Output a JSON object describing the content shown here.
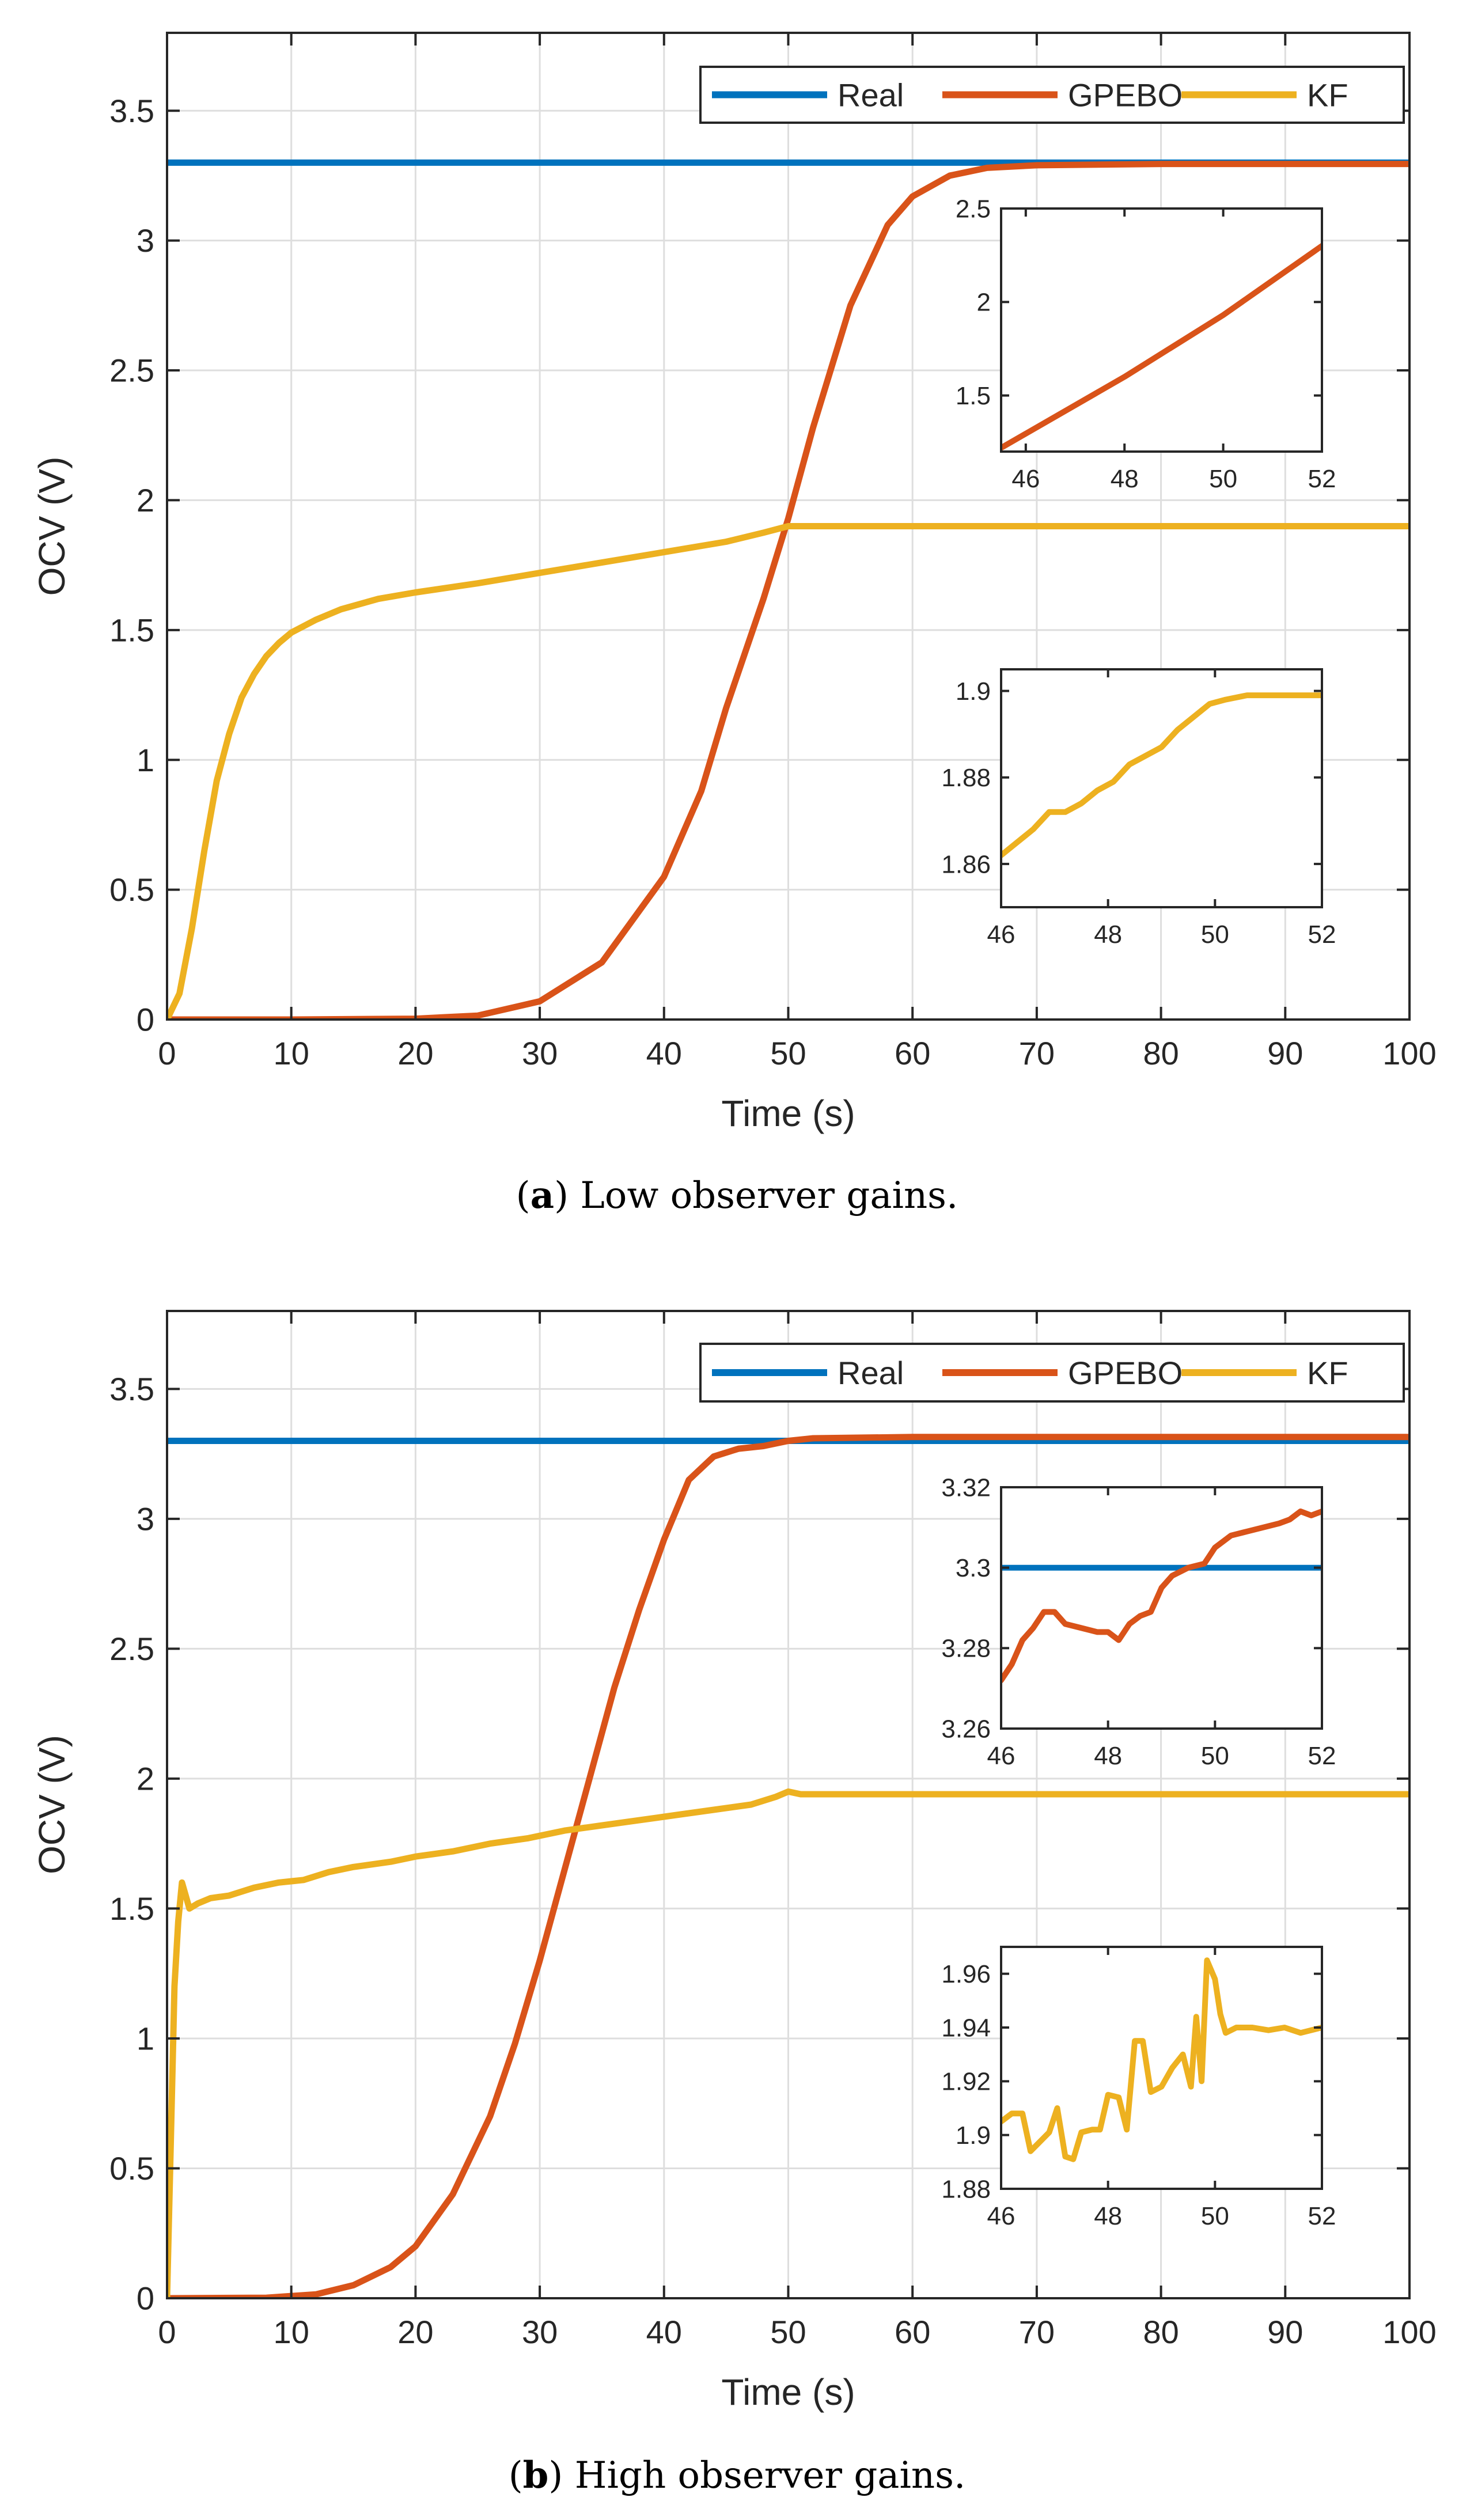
{
  "colors": {
    "real": "#0072BD",
    "gpebo": "#D95319",
    "kf": "#EDB120",
    "grid": "#DEDEDE",
    "axis": "#262626"
  },
  "legend": {
    "entries": [
      "Real",
      "GPEBO",
      "KF"
    ]
  },
  "captions": [
    {
      "letter": "a",
      "text": " Low observer gains.",
      "open": "(",
      "close": ")"
    },
    {
      "letter": "b",
      "text": " High observer gains.",
      "open": "(",
      "close": ")"
    }
  ],
  "chart_data": [
    {
      "type": "line",
      "panel": "a",
      "title": "",
      "xlabel": "Time (s)",
      "ylabel": "OCV (V)",
      "xlim": [
        0,
        100
      ],
      "ylim": [
        0,
        3.8
      ],
      "xticks": [
        0,
        10,
        20,
        30,
        40,
        50,
        60,
        70,
        80,
        90,
        100
      ],
      "yticks": [
        0,
        0.5,
        1,
        1.5,
        2,
        2.5,
        3,
        3.5
      ],
      "ytick_labels": [
        "0",
        "0.5",
        "1",
        "1.5",
        "2",
        "2.5",
        "3",
        "3.5"
      ],
      "grid": true,
      "legend_position": "top-right",
      "series": [
        {
          "name": "Real",
          "color_key": "real",
          "points": [
            [
              0,
              3.3
            ],
            [
              100,
              3.3
            ]
          ]
        },
        {
          "name": "GPEBO",
          "color_key": "gpebo",
          "points": [
            [
              0,
              0
            ],
            [
              10,
              0
            ],
            [
              20,
              0.003
            ],
            [
              25,
              0.015
            ],
            [
              30,
              0.07
            ],
            [
              35,
              0.22
            ],
            [
              40,
              0.55
            ],
            [
              43,
              0.88
            ],
            [
              45,
              1.2
            ],
            [
              48,
              1.62
            ],
            [
              50,
              1.93
            ],
            [
              52,
              2.28
            ],
            [
              55,
              2.75
            ],
            [
              58,
              3.06
            ],
            [
              60,
              3.17
            ],
            [
              63,
              3.25
            ],
            [
              66,
              3.28
            ],
            [
              70,
              3.29
            ],
            [
              80,
              3.295
            ],
            [
              100,
              3.295
            ]
          ]
        },
        {
          "name": "KF",
          "color_key": "kf",
          "points": [
            [
              0,
              0
            ],
            [
              1,
              0.1
            ],
            [
              2,
              0.35
            ],
            [
              3,
              0.65
            ],
            [
              4,
              0.92
            ],
            [
              5,
              1.1
            ],
            [
              6,
              1.24
            ],
            [
              7,
              1.33
            ],
            [
              8,
              1.4
            ],
            [
              9,
              1.45
            ],
            [
              10,
              1.49
            ],
            [
              12,
              1.54
            ],
            [
              14,
              1.58
            ],
            [
              17,
              1.62
            ],
            [
              20,
              1.645
            ],
            [
              25,
              1.68
            ],
            [
              30,
              1.72
            ],
            [
              35,
              1.76
            ],
            [
              40,
              1.8
            ],
            [
              45,
              1.84
            ],
            [
              48,
              1.875
            ],
            [
              50,
              1.9
            ],
            [
              52,
              1.9
            ],
            [
              100,
              1.9
            ]
          ]
        }
      ],
      "insets": [
        {
          "xlim": [
            45.5,
            52
          ],
          "ylim": [
            1.2,
            2.5
          ],
          "xticks": [
            46,
            48,
            50,
            52
          ],
          "yticks": [
            1.5,
            2,
            2.5
          ],
          "ytick_labels": [
            "1.5",
            "2",
            "2.5"
          ],
          "series": [
            {
              "name": "GPEBO",
              "color_key": "gpebo",
              "points": [
                [
                  45.5,
                  1.22
                ],
                [
                  48,
                  1.6
                ],
                [
                  50,
                  1.93
                ],
                [
                  52,
                  2.3
                ]
              ]
            }
          ]
        },
        {
          "xlim": [
            46,
            52
          ],
          "ylim": [
            1.85,
            1.905
          ],
          "xticks": [
            46,
            48,
            50,
            52
          ],
          "yticks": [
            1.86,
            1.88,
            1.9
          ],
          "ytick_labels": [
            "1.86",
            "1.88",
            "1.9"
          ],
          "series": [
            {
              "name": "KF",
              "color_key": "kf",
              "points": [
                [
                  46,
                  1.862
                ],
                [
                  46.3,
                  1.865
                ],
                [
                  46.6,
                  1.868
                ],
                [
                  46.9,
                  1.872
                ],
                [
                  47.2,
                  1.872
                ],
                [
                  47.5,
                  1.874
                ],
                [
                  47.8,
                  1.877
                ],
                [
                  48.1,
                  1.879
                ],
                [
                  48.4,
                  1.883
                ],
                [
                  48.7,
                  1.885
                ],
                [
                  49,
                  1.887
                ],
                [
                  49.3,
                  1.891
                ],
                [
                  49.6,
                  1.894
                ],
                [
                  49.9,
                  1.897
                ],
                [
                  50.2,
                  1.898
                ],
                [
                  50.6,
                  1.899
                ],
                [
                  51,
                  1.899
                ],
                [
                  52,
                  1.899
                ]
              ]
            }
          ]
        }
      ]
    },
    {
      "type": "line",
      "panel": "b",
      "title": "",
      "xlabel": "Time (s)",
      "ylabel": "OCV (V)",
      "xlim": [
        0,
        100
      ],
      "ylim": [
        0,
        3.8
      ],
      "xticks": [
        0,
        10,
        20,
        30,
        40,
        50,
        60,
        70,
        80,
        90,
        100
      ],
      "yticks": [
        0,
        0.5,
        1,
        1.5,
        2,
        2.5,
        3,
        3.5
      ],
      "ytick_labels": [
        "0",
        "0.5",
        "1",
        "1.5",
        "2",
        "2.5",
        "3",
        "3.5"
      ],
      "grid": true,
      "legend_position": "top-right",
      "series": [
        {
          "name": "Real",
          "color_key": "real",
          "points": [
            [
              0,
              3.3
            ],
            [
              100,
              3.3
            ]
          ]
        },
        {
          "name": "GPEBO",
          "color_key": "gpebo",
          "points": [
            [
              0,
              0
            ],
            [
              8,
              0.002
            ],
            [
              12,
              0.015
            ],
            [
              15,
              0.05
            ],
            [
              18,
              0.12
            ],
            [
              20,
              0.2
            ],
            [
              23,
              0.4
            ],
            [
              26,
              0.7
            ],
            [
              28,
              0.98
            ],
            [
              30,
              1.3
            ],
            [
              32,
              1.65
            ],
            [
              34,
              2.0
            ],
            [
              36,
              2.35
            ],
            [
              38,
              2.65
            ],
            [
              40,
              2.92
            ],
            [
              42,
              3.15
            ],
            [
              44,
              3.24
            ],
            [
              46,
              3.27
            ],
            [
              48,
              3.28
            ],
            [
              50,
              3.3
            ],
            [
              52,
              3.31
            ],
            [
              60,
              3.315
            ],
            [
              100,
              3.315
            ]
          ]
        },
        {
          "name": "KF",
          "color_key": "kf",
          "points": [
            [
              0,
              0
            ],
            [
              0.3,
              0.6
            ],
            [
              0.6,
              1.2
            ],
            [
              0.9,
              1.45
            ],
            [
              1.2,
              1.6
            ],
            [
              1.5,
              1.55
            ],
            [
              1.8,
              1.5
            ],
            [
              2.5,
              1.52
            ],
            [
              3.5,
              1.54
            ],
            [
              5,
              1.55
            ],
            [
              7,
              1.58
            ],
            [
              9,
              1.6
            ],
            [
              11,
              1.61
            ],
            [
              13,
              1.64
            ],
            [
              15,
              1.66
            ],
            [
              18,
              1.68
            ],
            [
              20,
              1.7
            ],
            [
              23,
              1.72
            ],
            [
              26,
              1.75
            ],
            [
              29,
              1.77
            ],
            [
              32,
              1.8
            ],
            [
              35,
              1.82
            ],
            [
              38,
              1.84
            ],
            [
              41,
              1.86
            ],
            [
              44,
              1.88
            ],
            [
              47,
              1.9
            ],
            [
              49,
              1.93
            ],
            [
              50,
              1.95
            ],
            [
              51,
              1.94
            ],
            [
              100,
              1.94
            ]
          ]
        }
      ],
      "insets": [
        {
          "xlim": [
            46,
            52
          ],
          "ylim": [
            3.26,
            3.32
          ],
          "xticks": [
            46,
            48,
            50,
            52
          ],
          "yticks": [
            3.26,
            3.28,
            3.3,
            3.32
          ],
          "ytick_labels": [
            "3.26",
            "3.28",
            "3.3",
            "3.32"
          ],
          "series": [
            {
              "name": "Real",
              "color_key": "real",
              "points": [
                [
                  46,
                  3.3
                ],
                [
                  52,
                  3.3
                ]
              ]
            },
            {
              "name": "GPEBO",
              "color_key": "gpebo",
              "points": [
                [
                  46,
                  3.272
                ],
                [
                  46.2,
                  3.276
                ],
                [
                  46.4,
                  3.282
                ],
                [
                  46.6,
                  3.285
                ],
                [
                  46.8,
                  3.289
                ],
                [
                  47,
                  3.289
                ],
                [
                  47.2,
                  3.286
                ],
                [
                  47.5,
                  3.285
                ],
                [
                  47.8,
                  3.284
                ],
                [
                  48,
                  3.284
                ],
                [
                  48.2,
                  3.282
                ],
                [
                  48.4,
                  3.286
                ],
                [
                  48.6,
                  3.288
                ],
                [
                  48.8,
                  3.289
                ],
                [
                  49,
                  3.295
                ],
                [
                  49.2,
                  3.298
                ],
                [
                  49.5,
                  3.3
                ],
                [
                  49.8,
                  3.301
                ],
                [
                  50,
                  3.305
                ],
                [
                  50.3,
                  3.308
                ],
                [
                  50.6,
                  3.309
                ],
                [
                  50.9,
                  3.31
                ],
                [
                  51.2,
                  3.311
                ],
                [
                  51.4,
                  3.312
                ],
                [
                  51.6,
                  3.314
                ],
                [
                  51.8,
                  3.313
                ],
                [
                  52,
                  3.314
                ]
              ]
            }
          ]
        },
        {
          "xlim": [
            46,
            52
          ],
          "ylim": [
            1.88,
            1.97
          ],
          "xticks": [
            46,
            48,
            50,
            52
          ],
          "yticks": [
            1.88,
            1.9,
            1.92,
            1.94,
            1.96
          ],
          "ytick_labels": [
            "1.88",
            "1.9",
            "1.92",
            "1.94",
            "1.96"
          ],
          "series": [
            {
              "name": "KF",
              "color_key": "kf",
              "points": [
                [
                  46,
                  1.905
                ],
                [
                  46.2,
                  1.908
                ],
                [
                  46.4,
                  1.908
                ],
                [
                  46.55,
                  1.894
                ],
                [
                  46.7,
                  1.897
                ],
                [
                  46.9,
                  1.901
                ],
                [
                  47.05,
                  1.91
                ],
                [
                  47.2,
                  1.892
                ],
                [
                  47.35,
                  1.891
                ],
                [
                  47.5,
                  1.901
                ],
                [
                  47.7,
                  1.902
                ],
                [
                  47.85,
                  1.902
                ],
                [
                  48,
                  1.915
                ],
                [
                  48.2,
                  1.914
                ],
                [
                  48.35,
                  1.902
                ],
                [
                  48.5,
                  1.935
                ],
                [
                  48.65,
                  1.935
                ],
                [
                  48.8,
                  1.916
                ],
                [
                  49,
                  1.918
                ],
                [
                  49.2,
                  1.925
                ],
                [
                  49.4,
                  1.93
                ],
                [
                  49.55,
                  1.918
                ],
                [
                  49.65,
                  1.944
                ],
                [
                  49.75,
                  1.92
                ],
                [
                  49.85,
                  1.965
                ],
                [
                  50,
                  1.958
                ],
                [
                  50.1,
                  1.945
                ],
                [
                  50.2,
                  1.938
                ],
                [
                  50.4,
                  1.94
                ],
                [
                  50.7,
                  1.94
                ],
                [
                  51,
                  1.939
                ],
                [
                  51.3,
                  1.94
                ],
                [
                  51.6,
                  1.938
                ],
                [
                  52,
                  1.94
                ]
              ]
            }
          ]
        }
      ]
    }
  ]
}
